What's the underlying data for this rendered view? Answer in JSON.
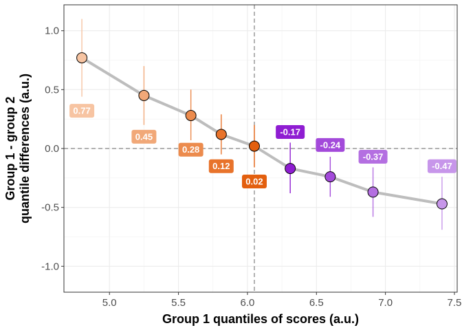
{
  "chart_data": {
    "type": "scatter",
    "xlabel": "Group 1 quantiles of scores (a.u.)",
    "ylabel_lines": [
      "Group 1 - group 2",
      "quantile differences (a.u.)"
    ],
    "xlim": [
      4.67,
      7.52
    ],
    "ylim": [
      -1.22,
      1.22
    ],
    "x_ticks": [
      5.0,
      5.5,
      6.0,
      6.5,
      7.0,
      7.5
    ],
    "x_tick_labels": [
      "5.0",
      "5.5",
      "6.0",
      "6.5",
      "7.0",
      "7.5"
    ],
    "y_ticks": [
      -1.0,
      -0.5,
      0.0,
      0.5,
      1.0
    ],
    "y_tick_labels": [
      "-1.0",
      "-0.5",
      "0.0",
      "0.5",
      "1.0"
    ],
    "reference_lines": {
      "vertical_x": 6.05,
      "horizontal_y": 0.0
    },
    "grid": true,
    "points": [
      {
        "x": 4.8,
        "y": 0.77,
        "lo": 0.44,
        "hi": 1.1,
        "label": "0.77",
        "label_y": 0.32,
        "color": "#F7C4A2"
      },
      {
        "x": 5.25,
        "y": 0.45,
        "lo": 0.2,
        "hi": 0.7,
        "label": "0.45",
        "label_y": 0.1,
        "color": "#F1A878"
      },
      {
        "x": 5.59,
        "y": 0.28,
        "lo": 0.07,
        "hi": 0.5,
        "label": "0.28",
        "label_y": -0.01,
        "color": "#EC8B4D"
      },
      {
        "x": 5.81,
        "y": 0.12,
        "lo": -0.05,
        "hi": 0.29,
        "label": "0.12",
        "label_y": -0.15,
        "color": "#E8732B"
      },
      {
        "x": 6.05,
        "y": 0.02,
        "lo": -0.16,
        "hi": 0.2,
        "label": "0.02",
        "label_y": -0.28,
        "color": "#E35F0E"
      },
      {
        "x": 6.31,
        "y": -0.17,
        "lo": -0.38,
        "hi": 0.05,
        "label": "-0.17",
        "label_y": 0.14,
        "color": "#8F1DD2"
      },
      {
        "x": 6.6,
        "y": -0.24,
        "lo": -0.41,
        "hi": -0.07,
        "label": "-0.24",
        "label_y": 0.03,
        "color": "#A34ADA"
      },
      {
        "x": 6.91,
        "y": -0.37,
        "lo": -0.58,
        "hi": -0.16,
        "label": "-0.37",
        "label_y": -0.07,
        "color": "#B46FE1"
      },
      {
        "x": 7.41,
        "y": -0.47,
        "lo": -0.69,
        "hi": -0.24,
        "label": "-0.47",
        "label_y": -0.15,
        "color": "#C796EA"
      }
    ],
    "line_color": "#BDBDBD"
  }
}
